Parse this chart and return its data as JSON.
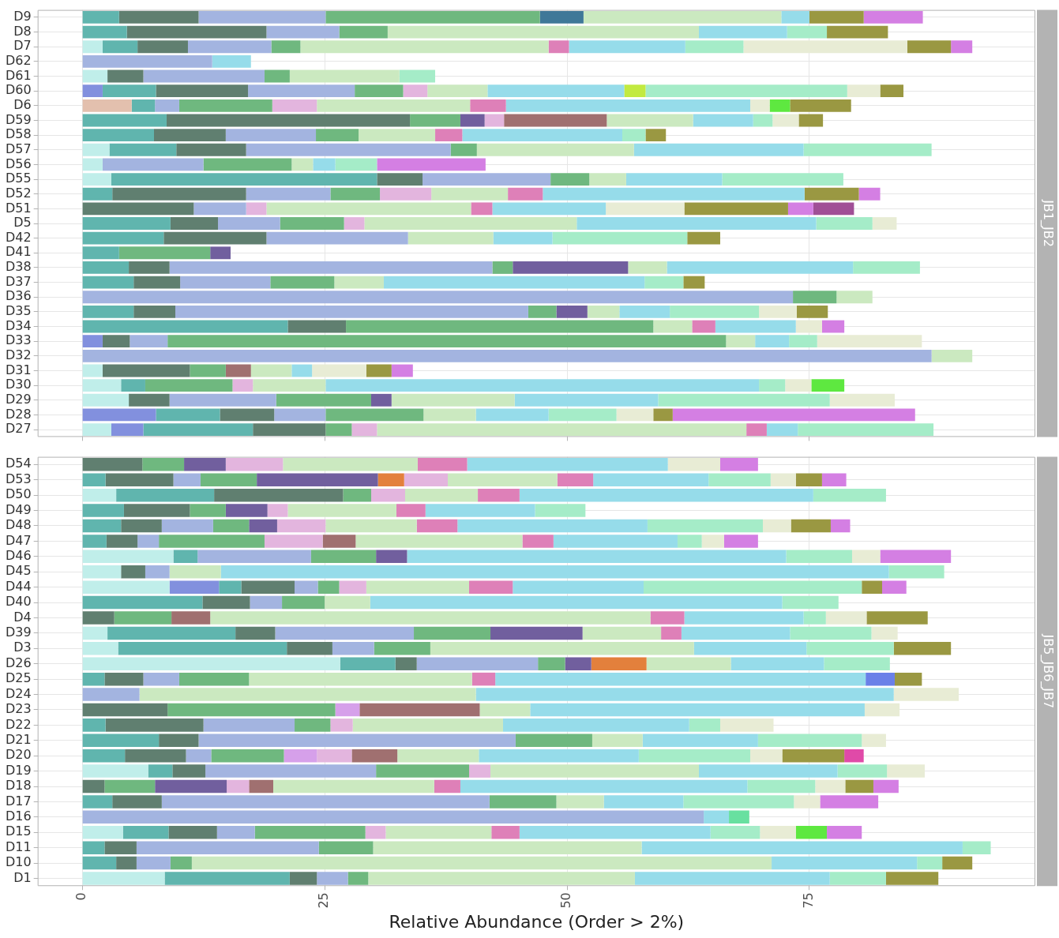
{
  "chart_data": [
    {
      "type": "bar",
      "orientation": "horizontal",
      "stacked": true,
      "title": "JB1_JB2",
      "grid": true,
      "legend": false,
      "tick_labels": "y",
      "xlim": [
        -4.6,
        98.3
      ],
      "xticks": [
        0,
        25,
        50,
        75
      ],
      "categories": [
        "D9",
        "D8",
        "D7",
        "D62",
        "D61",
        "D60",
        "D6",
        "D59",
        "D58",
        "D57",
        "D56",
        "D55",
        "D52",
        "D51",
        "D5",
        "D42",
        "D41",
        "D38",
        "D37",
        "D36",
        "D35",
        "D34",
        "D33",
        "D32",
        "D31",
        "D30",
        "D29",
        "D28",
        "D27"
      ],
      "series": [
        {
          "color": "#c0eeea",
          "values": [
            null,
            null,
            2.1,
            null,
            2.6,
            null,
            null,
            null,
            null,
            2.8,
            2.1,
            3.0,
            null,
            null,
            null,
            null,
            null,
            null,
            null,
            null,
            null,
            null,
            null,
            null,
            2.1,
            4.0,
            4.8,
            null,
            3.0
          ]
        },
        {
          "color": "#e3c0ae",
          "values": [
            null,
            null,
            null,
            null,
            null,
            null,
            5.1,
            null,
            null,
            null,
            null,
            null,
            null,
            null,
            null,
            null,
            null,
            null,
            null,
            null,
            null,
            null,
            null,
            null,
            null,
            null,
            null,
            null,
            null
          ]
        },
        {
          "color": "#8290de",
          "values": [
            null,
            null,
            null,
            null,
            null,
            2.1,
            null,
            null,
            null,
            null,
            null,
            null,
            null,
            null,
            null,
            null,
            null,
            null,
            null,
            null,
            null,
            null,
            2.1,
            null,
            null,
            null,
            null,
            7.6,
            3.3
          ]
        },
        {
          "color": "#60b5ae",
          "values": [
            3.8,
            4.6,
            3.6,
            null,
            null,
            5.5,
            2.4,
            8.7,
            7.4,
            6.9,
            null,
            27.4,
            3.1,
            null,
            9.1,
            8.4,
            3.8,
            4.8,
            5.3,
            null,
            5.3,
            21.2,
            null,
            null,
            null,
            2.5,
            null,
            6.6,
            11.3
          ]
        },
        {
          "color": "#607f70",
          "values": [
            8.2,
            14.4,
            5.2,
            null,
            3.7,
            9.5,
            null,
            25.1,
            7.4,
            7.2,
            null,
            4.7,
            13.8,
            11.5,
            4.9,
            10.6,
            null,
            4.2,
            4.8,
            null,
            4.3,
            6.0,
            2.8,
            null,
            9.0,
            null,
            4.2,
            5.6,
            7.5
          ]
        },
        {
          "color": "#a3b4e0",
          "values": [
            13.1,
            7.5,
            8.6,
            13.4,
            12.5,
            11.0,
            2.5,
            null,
            9.3,
            21.1,
            10.4,
            13.2,
            8.7,
            5.4,
            6.4,
            14.6,
            null,
            33.3,
            9.3,
            73.3,
            36.4,
            null,
            3.9,
            87.6,
            null,
            null,
            11.0,
            5.3,
            null
          ]
        },
        {
          "color": "#6fb87f",
          "values": [
            22.1,
            5.0,
            3.0,
            null,
            2.6,
            5.0,
            9.6,
            5.2,
            4.4,
            2.7,
            9.1,
            4.0,
            5.1,
            null,
            6.6,
            null,
            9.4,
            2.1,
            6.6,
            4.5,
            2.9,
            31.7,
            57.6,
            null,
            3.7,
            9.0,
            9.8,
            10.1,
            2.7
          ]
        },
        {
          "color": "#3f7898",
          "values": [
            4.5,
            null,
            null,
            null,
            null,
            null,
            null,
            null,
            null,
            null,
            null,
            null,
            null,
            null,
            null,
            null,
            null,
            null,
            null,
            null,
            null,
            null,
            null,
            null,
            null,
            null,
            null,
            null,
            null
          ]
        },
        {
          "color": "#715f9e",
          "values": [
            null,
            null,
            null,
            null,
            null,
            null,
            null,
            2.5,
            null,
            null,
            null,
            null,
            null,
            null,
            null,
            null,
            2.1,
            11.9,
            null,
            null,
            3.2,
            null,
            null,
            null,
            null,
            null,
            2.1,
            null,
            null
          ]
        },
        {
          "color": "#e3b5de",
          "values": [
            null,
            null,
            null,
            null,
            null,
            2.5,
            4.6,
            2.0,
            null,
            null,
            null,
            null,
            5.3,
            2.1,
            2.1,
            null,
            null,
            null,
            null,
            null,
            null,
            null,
            null,
            null,
            null,
            2.1,
            null,
            null,
            2.6
          ]
        },
        {
          "color": "#a07070",
          "values": [
            null,
            null,
            null,
            null,
            null,
            null,
            null,
            10.6,
            null,
            null,
            null,
            null,
            null,
            null,
            null,
            null,
            null,
            null,
            null,
            null,
            null,
            null,
            null,
            null,
            2.6,
            null,
            null,
            null,
            null
          ]
        },
        {
          "color": "#cbe9c0",
          "values": [
            20.4,
            32.1,
            25.6,
            null,
            11.3,
            6.2,
            15.8,
            8.9,
            7.9,
            16.2,
            2.2,
            3.8,
            7.9,
            21.1,
            21.9,
            8.8,
            null,
            4.0,
            5.1,
            3.7,
            3.3,
            4.0,
            3.0,
            4.2,
            4.2,
            7.5,
            12.7,
            5.4,
            38.1
          ]
        },
        {
          "color": "#de80b8",
          "values": [
            null,
            null,
            2.1,
            null,
            null,
            null,
            3.7,
            null,
            2.8,
            null,
            null,
            null,
            3.6,
            2.2,
            null,
            null,
            null,
            null,
            null,
            null,
            null,
            2.4,
            null,
            null,
            null,
            null,
            null,
            null,
            2.1
          ]
        },
        {
          "color": "#96dcea",
          "values": [
            2.9,
            9.1,
            12.0,
            4.0,
            null,
            14.1,
            25.2,
            6.2,
            16.5,
            17.5,
            2.3,
            9.9,
            27.0,
            11.7,
            24.7,
            6.1,
            null,
            19.2,
            26.9,
            null,
            5.2,
            8.3,
            3.5,
            null,
            2.1,
            44.7,
            14.8,
            7.5,
            3.2
          ]
        },
        {
          "color": "#c2ea40",
          "values": [
            null,
            null,
            null,
            null,
            null,
            2.2,
            null,
            null,
            null,
            null,
            null,
            null,
            null,
            null,
            null,
            null,
            null,
            null,
            null,
            null,
            null,
            null,
            null,
            null,
            null,
            null,
            null,
            null,
            null
          ]
        },
        {
          "color": "#a5ecc8",
          "values": [
            null,
            4.1,
            6.0,
            null,
            3.7,
            20.8,
            null,
            2.0,
            2.4,
            13.2,
            4.3,
            12.5,
            null,
            null,
            5.8,
            13.9,
            null,
            6.9,
            4.0,
            null,
            9.2,
            null,
            2.9,
            null,
            null,
            2.7,
            17.7,
            7.0,
            14.0
          ]
        },
        {
          "color": "#e8ecd5",
          "values": [
            null,
            null,
            16.9,
            null,
            null,
            3.4,
            2.0,
            2.7,
            null,
            null,
            null,
            null,
            null,
            8.1,
            2.5,
            null,
            null,
            null,
            null,
            null,
            3.9,
            2.7,
            10.8,
            null,
            5.6,
            2.7,
            6.7,
            3.8,
            null
          ]
        },
        {
          "color": "#5ee840",
          "values": [
            null,
            null,
            null,
            null,
            null,
            null,
            2.1,
            null,
            null,
            null,
            null,
            null,
            null,
            null,
            null,
            null,
            null,
            null,
            null,
            null,
            null,
            null,
            null,
            null,
            null,
            3.4,
            null,
            null,
            null
          ]
        },
        {
          "color": "#9a9842",
          "values": [
            5.6,
            6.3,
            4.5,
            null,
            null,
            2.4,
            6.3,
            2.5,
            2.1,
            null,
            null,
            null,
            5.6,
            10.7,
            null,
            3.4,
            null,
            null,
            2.2,
            null,
            3.2,
            null,
            null,
            null,
            2.6,
            null,
            null,
            2.0,
            null
          ]
        },
        {
          "color": "#d47fe3",
          "values": [
            6.1,
            null,
            2.2,
            null,
            null,
            null,
            null,
            null,
            null,
            null,
            11.2,
            null,
            2.2,
            2.6,
            null,
            null,
            null,
            null,
            null,
            null,
            null,
            2.3,
            null,
            null,
            2.2,
            null,
            null,
            25.0,
            null
          ]
        },
        {
          "color": "#a04f96",
          "values": [
            null,
            null,
            null,
            null,
            null,
            null,
            null,
            null,
            null,
            null,
            null,
            null,
            null,
            4.2,
            null,
            null,
            null,
            null,
            null,
            null,
            null,
            null,
            null,
            null,
            null,
            null,
            null,
            null,
            null
          ]
        }
      ]
    },
    {
      "type": "bar",
      "orientation": "horizontal",
      "stacked": true,
      "title": "JB5_JB6_JB7",
      "xlabel": "Relative Abundance (Order > 2%)",
      "grid": true,
      "legend": false,
      "xlim": [
        -4.6,
        98.3
      ],
      "xticks": [
        0,
        25,
        50,
        75
      ],
      "categories": [
        "D54",
        "D53",
        "D50",
        "D49",
        "D48",
        "D47",
        "D46",
        "D45",
        "D44",
        "D40",
        "D4",
        "D39",
        "D3",
        "D26",
        "D25",
        "D24",
        "D23",
        "D22",
        "D21",
        "D20",
        "D19",
        "D18",
        "D17",
        "D16",
        "D15",
        "D11",
        "D10",
        "D1"
      ],
      "series": [
        {
          "color": "#c0eeea",
          "values": [
            null,
            null,
            3.5,
            null,
            null,
            null,
            9.4,
            4.0,
            9.0,
            null,
            null,
            2.6,
            3.7,
            26.6,
            null,
            null,
            null,
            null,
            null,
            null,
            6.8,
            null,
            null,
            null,
            4.2,
            null,
            null,
            8.5
          ]
        },
        {
          "color": "#8290de",
          "values": [
            null,
            null,
            null,
            null,
            null,
            null,
            null,
            null,
            5.1,
            null,
            null,
            null,
            null,
            null,
            null,
            null,
            null,
            null,
            null,
            null,
            null,
            null,
            null,
            null,
            null,
            null,
            null,
            null
          ]
        },
        {
          "color": "#60b5ae",
          "values": [
            null,
            2.4,
            10.1,
            4.3,
            4.0,
            2.5,
            2.5,
            null,
            2.3,
            12.4,
            null,
            13.2,
            17.4,
            5.7,
            2.3,
            null,
            null,
            2.4,
            7.9,
            4.4,
            2.5,
            null,
            3.1,
            null,
            4.7,
            2.3,
            3.5,
            12.9
          ]
        },
        {
          "color": "#607f70",
          "values": [
            6.2,
            7.0,
            13.3,
            6.8,
            4.2,
            3.2,
            null,
            2.5,
            5.5,
            4.9,
            3.3,
            4.1,
            4.7,
            2.2,
            4.0,
            null,
            8.8,
            10.1,
            4.1,
            6.3,
            3.4,
            2.3,
            5.1,
            null,
            5.0,
            3.3,
            2.1,
            2.8
          ]
        },
        {
          "color": "#a3b4e0",
          "values": [
            null,
            2.8,
            null,
            null,
            5.3,
            2.2,
            11.7,
            2.5,
            2.4,
            3.3,
            null,
            14.3,
            4.3,
            12.5,
            3.7,
            5.9,
            null,
            9.4,
            32.7,
            2.6,
            17.6,
            null,
            33.8,
            64.1,
            3.9,
            18.8,
            3.5,
            3.2
          ]
        },
        {
          "color": "#6fb87f",
          "values": [
            4.3,
            5.8,
            2.9,
            3.7,
            3.7,
            10.9,
            6.7,
            null,
            2.2,
            4.4,
            5.9,
            7.9,
            5.8,
            2.8,
            7.2,
            null,
            17.3,
            3.7,
            7.9,
            7.5,
            9.6,
            5.2,
            6.9,
            null,
            11.4,
            5.6,
            2.2,
            2.1
          ]
        },
        {
          "color": "#715f9e",
          "values": [
            4.3,
            12.5,
            null,
            4.3,
            2.9,
            null,
            3.2,
            null,
            null,
            null,
            null,
            9.5,
            null,
            2.7,
            null,
            null,
            null,
            null,
            null,
            null,
            null,
            7.4,
            null,
            null,
            null,
            null,
            null,
            null
          ]
        },
        {
          "color": "#e3803c",
          "values": [
            null,
            2.7,
            null,
            null,
            null,
            null,
            null,
            null,
            null,
            null,
            null,
            null,
            null,
            5.7,
            null,
            null,
            null,
            null,
            null,
            null,
            null,
            null,
            null,
            null,
            null,
            null,
            null,
            null
          ]
        },
        {
          "color": "#d6a0ea",
          "values": [
            null,
            null,
            null,
            null,
            null,
            null,
            null,
            null,
            null,
            null,
            null,
            null,
            null,
            null,
            null,
            null,
            2.5,
            null,
            null,
            3.4,
            null,
            null,
            null,
            null,
            null,
            null,
            null,
            null
          ]
        },
        {
          "color": "#e3b5de",
          "values": [
            5.9,
            4.5,
            3.5,
            2.1,
            5.0,
            6.0,
            null,
            null,
            2.8,
            null,
            null,
            null,
            null,
            null,
            null,
            null,
            null,
            2.3,
            null,
            3.6,
            2.2,
            2.3,
            null,
            null,
            2.1,
            null,
            null,
            null
          ]
        },
        {
          "color": "#a07070",
          "values": [
            null,
            null,
            null,
            null,
            null,
            3.4,
            null,
            null,
            null,
            null,
            4.0,
            null,
            null,
            null,
            null,
            null,
            12.4,
            null,
            null,
            4.7,
            null,
            2.5,
            null,
            null,
            null,
            null,
            null,
            null
          ]
        },
        {
          "color": "#cbe9c0",
          "values": [
            13.9,
            11.3,
            7.5,
            11.2,
            9.4,
            17.2,
            null,
            5.3,
            10.6,
            4.7,
            45.4,
            8.1,
            27.2,
            8.7,
            23.0,
            34.7,
            5.2,
            15.5,
            5.2,
            8.4,
            21.5,
            16.6,
            4.9,
            null,
            10.9,
            27.7,
            59.8,
            27.5
          ]
        },
        {
          "color": "#de80b8",
          "values": [
            5.1,
            3.7,
            4.3,
            3.0,
            4.2,
            3.2,
            null,
            null,
            4.5,
            null,
            3.5,
            2.1,
            null,
            null,
            2.4,
            null,
            null,
            null,
            null,
            null,
            null,
            2.7,
            null,
            null,
            2.9,
            null,
            null,
            null
          ]
        },
        {
          "color": "#96dcea",
          "values": [
            20.7,
            11.9,
            30.3,
            11.3,
            19.6,
            12.8,
            39.1,
            68.9,
            13.5,
            42.5,
            12.3,
            11.2,
            11.6,
            9.6,
            38.2,
            43.1,
            34.5,
            19.2,
            11.9,
            16.5,
            14.3,
            29.6,
            8.2,
            2.6,
            19.7,
            33.1,
            15.0,
            20.1
          ]
        },
        {
          "color": "#6a80e8",
          "values": [
            null,
            null,
            null,
            null,
            null,
            null,
            null,
            null,
            null,
            null,
            null,
            null,
            null,
            null,
            3.0,
            null,
            null,
            null,
            null,
            null,
            null,
            null,
            null,
            null,
            null,
            null,
            null,
            null
          ]
        },
        {
          "color": "#68e0a0",
          "values": [
            null,
            null,
            null,
            null,
            null,
            null,
            null,
            null,
            null,
            null,
            null,
            null,
            null,
            null,
            null,
            null,
            null,
            null,
            null,
            null,
            null,
            null,
            null,
            2.1,
            null,
            null,
            null,
            null
          ]
        },
        {
          "color": "#a5ecc8",
          "values": [
            null,
            6.4,
            7.5,
            5.2,
            11.9,
            2.5,
            6.8,
            5.7,
            22.5,
            5.8,
            2.3,
            8.4,
            9.0,
            6.8,
            null,
            null,
            null,
            3.2,
            10.7,
            11.5,
            5.1,
            7.0,
            11.4,
            null,
            5.1,
            2.9,
            2.6,
            5.8
          ]
        },
        {
          "color": "#e8ecd5",
          "values": [
            5.4,
            2.6,
            null,
            null,
            2.9,
            2.3,
            2.9,
            null,
            null,
            null,
            4.2,
            2.7,
            null,
            null,
            null,
            6.7,
            3.6,
            5.5,
            2.5,
            3.3,
            3.9,
            3.1,
            2.7,
            null,
            3.7,
            null,
            null,
            null
          ]
        },
        {
          "color": "#5ee840",
          "values": [
            null,
            null,
            null,
            null,
            null,
            null,
            null,
            null,
            null,
            null,
            null,
            null,
            null,
            null,
            null,
            null,
            null,
            null,
            null,
            null,
            null,
            null,
            null,
            null,
            3.2,
            null,
            null,
            null
          ]
        },
        {
          "color": "#9a9842",
          "values": [
            null,
            2.7,
            null,
            null,
            4.1,
            null,
            null,
            null,
            2.1,
            null,
            6.3,
            null,
            5.9,
            null,
            2.8,
            null,
            null,
            null,
            null,
            6.4,
            null,
            2.9,
            null,
            null,
            null,
            null,
            3.1,
            5.4
          ]
        },
        {
          "color": "#d47fe3",
          "values": [
            3.9,
            2.5,
            null,
            null,
            2.0,
            3.5,
            7.3,
            null,
            2.5,
            null,
            null,
            null,
            null,
            null,
            null,
            null,
            null,
            null,
            null,
            null,
            null,
            2.6,
            6.0,
            null,
            3.6,
            null,
            null,
            null
          ]
        },
        {
          "color": "#e04aa8",
          "values": [
            null,
            null,
            null,
            null,
            null,
            null,
            null,
            null,
            null,
            null,
            null,
            null,
            null,
            null,
            null,
            null,
            null,
            null,
            null,
            2.0,
            null,
            null,
            null,
            null,
            null,
            null,
            null,
            null
          ]
        }
      ]
    }
  ]
}
